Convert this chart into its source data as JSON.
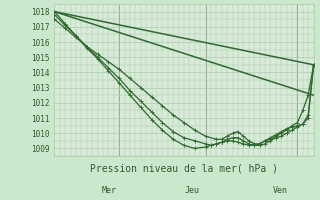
{
  "bg_color": "#cce8cc",
  "plot_bg_color": "#d8ead8",
  "grid_color": "#aaccaa",
  "line_color": "#2d6a2d",
  "marker_color": "#2d6a2d",
  "title": "Pression niveau de la mer( hPa )",
  "ylabel_ticks": [
    1009,
    1010,
    1011,
    1012,
    1013,
    1014,
    1015,
    1016,
    1017,
    1018
  ],
  "ylim": [
    1008.5,
    1018.5
  ],
  "xlim": [
    0,
    96
  ],
  "x_day_labels": [
    [
      "Mer",
      24
    ],
    [
      "Jeu",
      56
    ],
    [
      "Ven",
      90
    ]
  ],
  "series": [
    {
      "x": [
        0,
        96
      ],
      "y": [
        1018.0,
        1014.5
      ],
      "markers": false,
      "linewidth": 1.1
    },
    {
      "x": [
        0,
        96
      ],
      "y": [
        1018.0,
        1012.5
      ],
      "markers": false,
      "linewidth": 1.1
    },
    {
      "x": [
        0,
        4,
        8,
        12,
        16,
        20,
        24,
        28,
        32,
        36,
        40,
        44,
        48,
        52,
        56,
        60,
        62,
        64,
        66,
        68,
        70,
        72,
        74,
        76,
        78,
        80,
        82,
        84,
        86,
        88,
        90,
        92,
        94,
        96
      ],
      "y": [
        1017.5,
        1016.9,
        1016.3,
        1015.7,
        1015.2,
        1014.7,
        1014.2,
        1013.6,
        1013.0,
        1012.4,
        1011.8,
        1011.2,
        1010.7,
        1010.2,
        1009.8,
        1009.6,
        1009.6,
        1009.8,
        1010.0,
        1010.1,
        1009.8,
        1009.5,
        1009.3,
        1009.3,
        1009.5,
        1009.7,
        1009.9,
        1010.1,
        1010.3,
        1010.4,
        1010.5,
        1010.6,
        1011.0,
        1014.5
      ],
      "markers": true,
      "linewidth": 0.9
    },
    {
      "x": [
        0,
        4,
        8,
        12,
        16,
        20,
        24,
        28,
        32,
        36,
        40,
        44,
        48,
        52,
        56,
        58,
        60,
        62,
        64,
        66,
        68,
        70,
        72,
        74,
        76,
        78,
        80,
        82,
        84,
        86,
        88,
        90,
        92,
        94,
        96
      ],
      "y": [
        1017.8,
        1017.1,
        1016.4,
        1015.7,
        1015.0,
        1014.3,
        1013.6,
        1012.8,
        1012.1,
        1011.4,
        1010.7,
        1010.1,
        1009.7,
        1009.5,
        1009.3,
        1009.2,
        1009.3,
        1009.4,
        1009.6,
        1009.7,
        1009.7,
        1009.5,
        1009.3,
        1009.2,
        1009.2,
        1009.3,
        1009.5,
        1009.7,
        1009.8,
        1010.0,
        1010.2,
        1010.4,
        1010.6,
        1011.2,
        1014.5
      ],
      "markers": true,
      "linewidth": 0.9
    },
    {
      "x": [
        0,
        4,
        8,
        12,
        16,
        20,
        24,
        28,
        32,
        36,
        40,
        44,
        48,
        52,
        56,
        58,
        60,
        62,
        64,
        66,
        68,
        70,
        72,
        74,
        76,
        78,
        80,
        82,
        84,
        86,
        88,
        90,
        92,
        94,
        96
      ],
      "y": [
        1018.0,
        1017.2,
        1016.4,
        1015.6,
        1014.9,
        1014.1,
        1013.3,
        1012.5,
        1011.7,
        1010.9,
        1010.2,
        1009.6,
        1009.2,
        1009.0,
        1009.1,
        1009.2,
        1009.3,
        1009.4,
        1009.5,
        1009.5,
        1009.4,
        1009.3,
        1009.2,
        1009.2,
        1009.3,
        1009.5,
        1009.6,
        1009.8,
        1010.0,
        1010.2,
        1010.5,
        1010.7,
        1011.5,
        1012.5,
        1014.5
      ],
      "markers": true,
      "linewidth": 0.9
    }
  ]
}
